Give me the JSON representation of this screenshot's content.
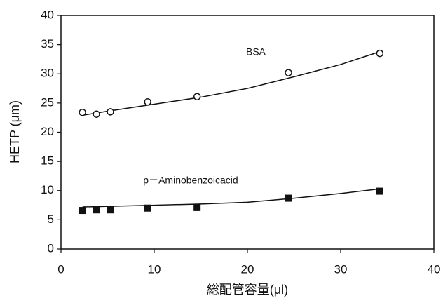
{
  "chart_data": {
    "type": "scatter",
    "x_label": "総配管容量(μl)",
    "y_label": "HETP (μm)",
    "xlim": [
      0,
      40
    ],
    "xticks": [
      0,
      10,
      20,
      30,
      40
    ],
    "ylim": [
      0,
      40
    ],
    "yticks": [
      0,
      5,
      10,
      15,
      20,
      25,
      30,
      35,
      40
    ],
    "grid": false,
    "series": [
      {
        "name": "BSA",
        "color": "#111111",
        "marker": "circle-open",
        "x": [
          2.3,
          3.8,
          5.3,
          9.3,
          14.6,
          24.4,
          34.2
        ],
        "values": [
          23.4,
          23.1,
          23.5,
          25.2,
          26.1,
          30.2,
          33.5
        ],
        "fit": {
          "x": [
            2.3,
            5,
            10,
            15,
            20,
            25,
            30,
            34.2
          ],
          "values": [
            22.9,
            23.6,
            24.8,
            26.0,
            27.5,
            29.5,
            31.6,
            33.8
          ]
        }
      },
      {
        "name": "p－Aminobenzoicacid",
        "color": "#111111",
        "marker": "square",
        "x": [
          2.3,
          3.8,
          5.3,
          9.3,
          14.6,
          24.4,
          34.2
        ],
        "values": [
          6.6,
          6.7,
          6.7,
          7.0,
          7.1,
          8.7,
          9.9
        ],
        "fit": {
          "x": [
            2.3,
            10,
            15,
            20,
            25,
            30,
            34.2
          ],
          "values": [
            7.2,
            7.5,
            7.7,
            8.0,
            8.7,
            9.5,
            10.3
          ]
        }
      }
    ]
  }
}
